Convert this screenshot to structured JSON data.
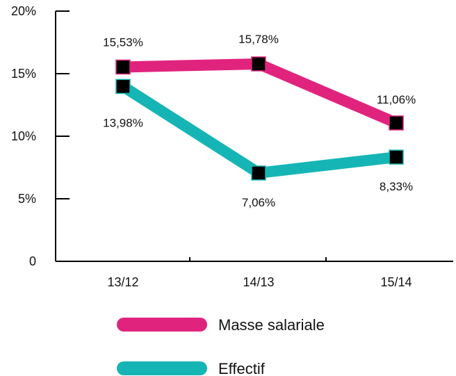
{
  "chart_data": {
    "type": "line",
    "categories": [
      "13/12",
      "14/13",
      "15/14"
    ],
    "series": [
      {
        "name": "Masse salariale",
        "values": [
          15.53,
          15.78,
          11.06
        ],
        "labels": [
          "15,53%",
          "15,78%",
          "11,06%"
        ],
        "color": "#e0247e"
      },
      {
        "name": "Effectif",
        "values": [
          13.98,
          7.06,
          8.33
        ],
        "labels": [
          "13,98%",
          "7,06%",
          "8,33%"
        ],
        "color": "#16b5b5"
      }
    ],
    "ylim": [
      0,
      20
    ],
    "yticks": [
      {
        "value": 0,
        "label": "0"
      },
      {
        "value": 5,
        "label": "5%"
      },
      {
        "value": 10,
        "label": "10%"
      },
      {
        "value": 15,
        "label": "15%"
      },
      {
        "value": 20,
        "label": "20%"
      }
    ],
    "marker_color": "#000000",
    "grid": false,
    "legend_position": "bottom"
  }
}
